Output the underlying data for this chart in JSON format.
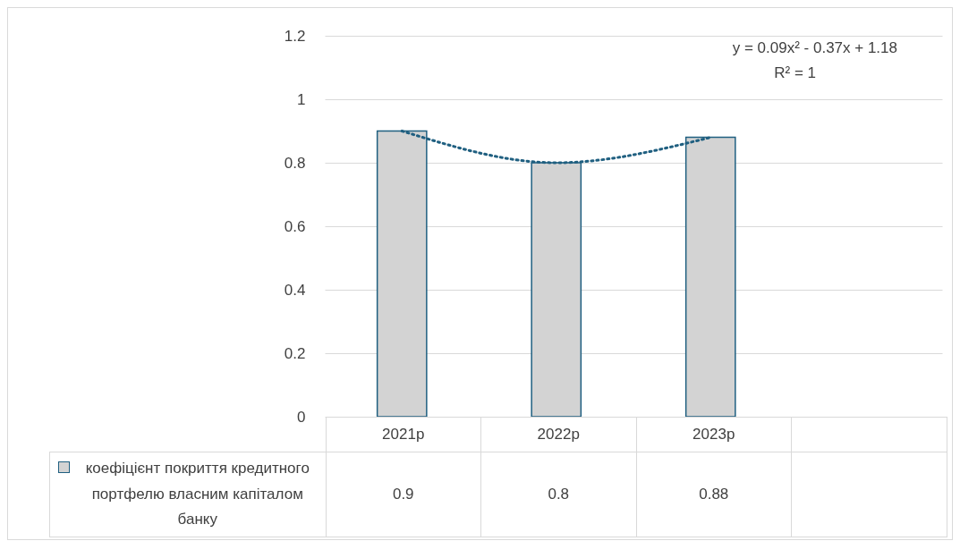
{
  "chart_data": {
    "type": "bar",
    "categories": [
      "2021р",
      "2022р",
      "2023р",
      null
    ],
    "series": [
      {
        "name": "коефіцієнт покриття кредитного портфелю власним капіталом банку",
        "color": "#d3d3d3",
        "values": [
          0.9,
          0.8,
          0.88,
          null
        ],
        "value_labels": [
          "0.9",
          "0.8",
          "0.88",
          null
        ]
      },
      {
        "type": "line",
        "color": "#1f5f80",
        "line_style": "dotted",
        "values": [
          0.9,
          0.8,
          0.88,
          null
        ]
      }
    ],
    "ylim": [
      0,
      1.2
    ],
    "yticks": [
      0,
      0.2,
      0.4,
      0.6,
      0.8,
      1,
      1.2
    ],
    "grid": "y",
    "legend": "bottom",
    "annotations": [
      "y = 0.09x² - 0.37x + 1.18",
      "R² = 1"
    ]
  }
}
